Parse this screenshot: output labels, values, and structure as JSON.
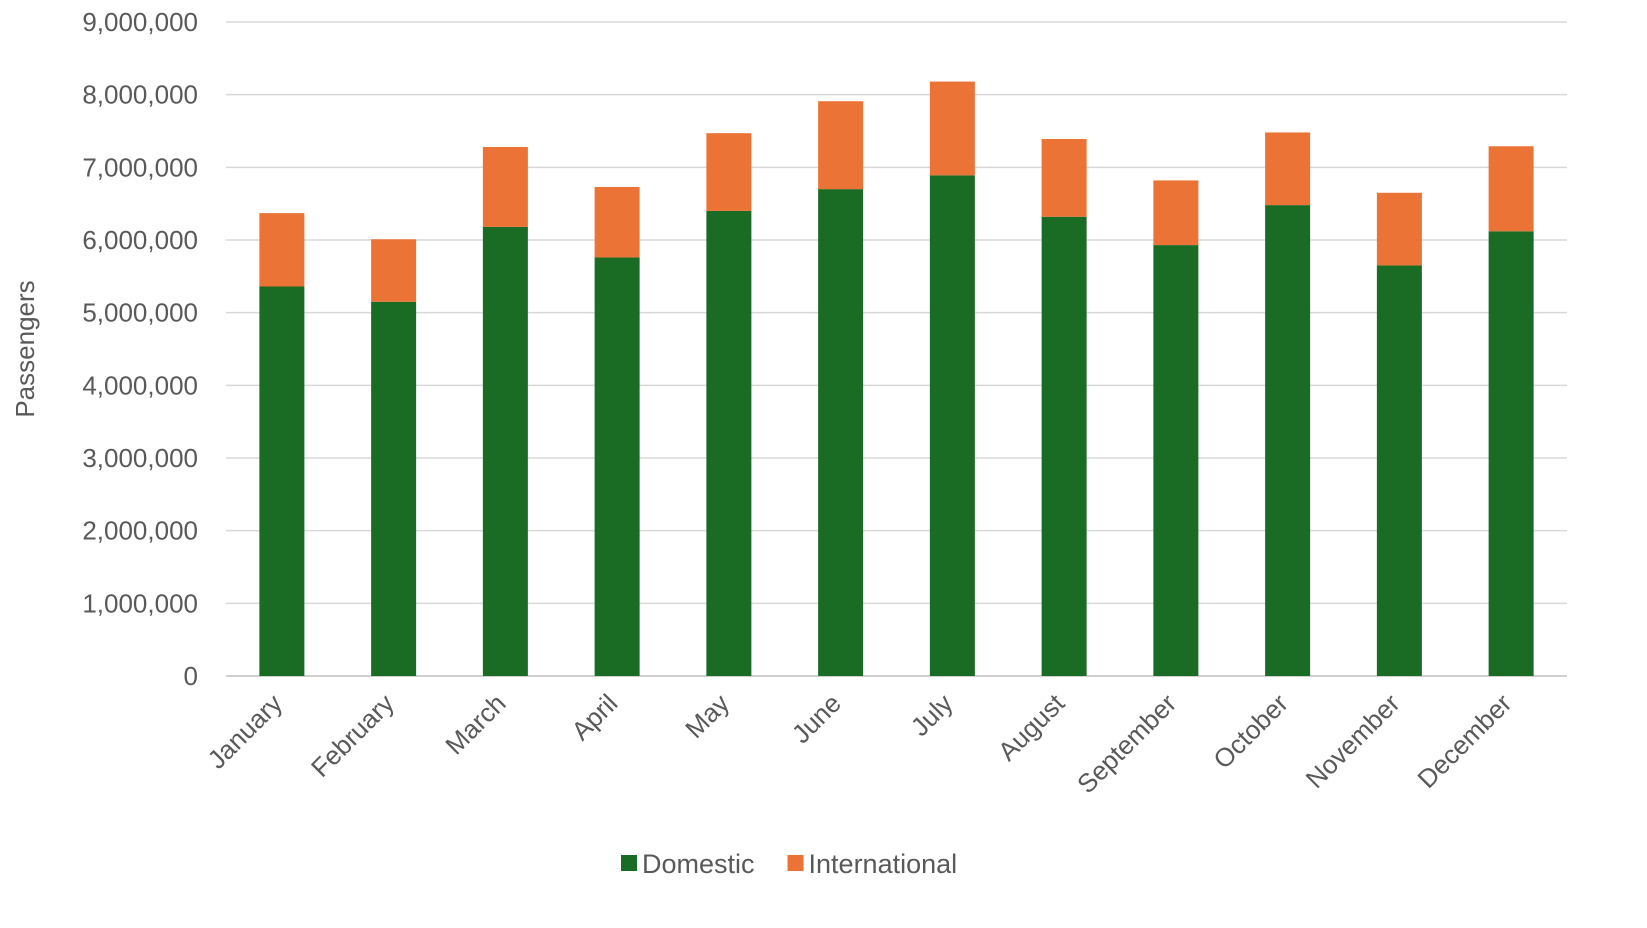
{
  "chart_data": {
    "type": "bar",
    "stacked": true,
    "title": "",
    "xlabel": "",
    "ylabel": "Passengers",
    "ylim": [
      0,
      9000000
    ],
    "yticks": [
      0,
      1000000,
      2000000,
      3000000,
      4000000,
      5000000,
      6000000,
      7000000,
      8000000,
      9000000
    ],
    "grid": true,
    "legend_position": "bottom",
    "categories": [
      "January",
      "February",
      "March",
      "April",
      "May",
      "June",
      "July",
      "August",
      "September",
      "October",
      "November",
      "December"
    ],
    "series": [
      {
        "name": "Domestic",
        "color": "#1a6b24",
        "values": [
          5360000,
          5150000,
          6180000,
          5760000,
          6400000,
          6700000,
          6890000,
          6320000,
          5930000,
          6480000,
          5650000,
          6120000
        ]
      },
      {
        "name": "International",
        "color": "#ea7335",
        "values": [
          1010000,
          860000,
          1100000,
          970000,
          1070000,
          1210000,
          1290000,
          1070000,
          890000,
          1000000,
          1000000,
          1170000
        ]
      }
    ]
  }
}
